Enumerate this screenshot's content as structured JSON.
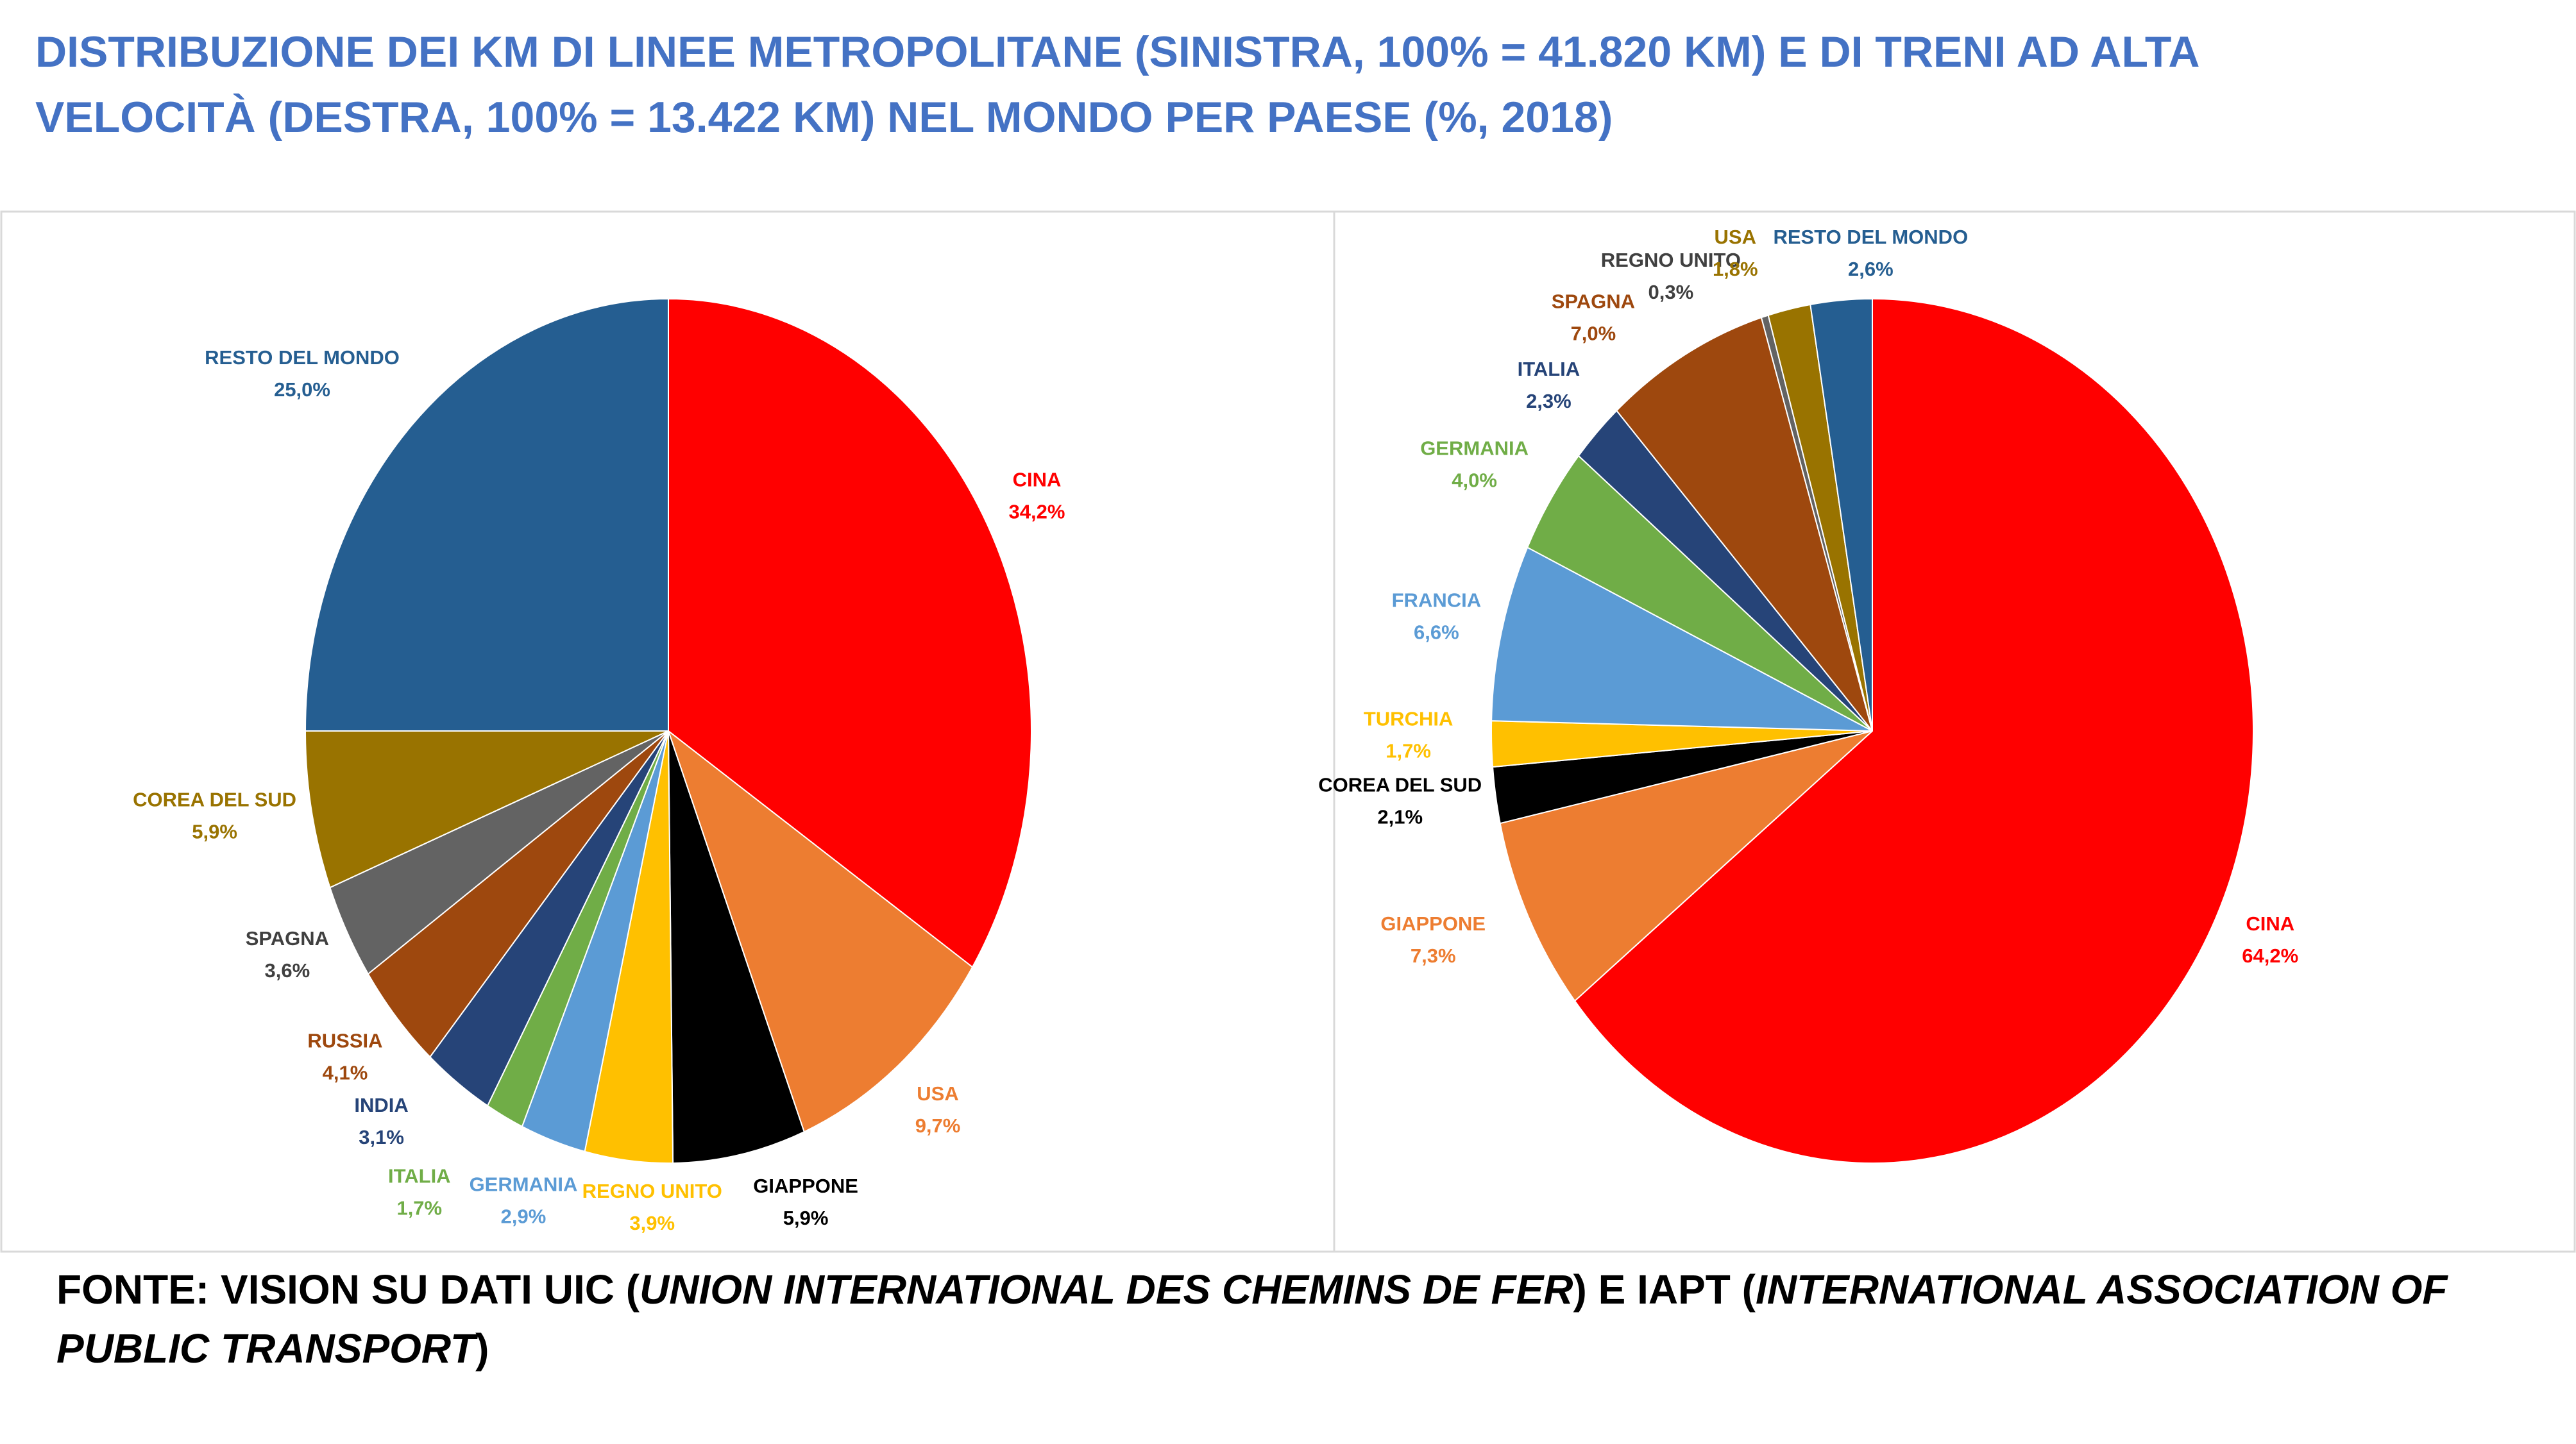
{
  "title": "DISTRIBUZIONE DEI KM DI LINEE METROPOLITANE (SINISTRA, 100% = 41.820 KM) E DI TRENI AD ALTA VELOCITÀ (DESTRA, 100% = 13.422 KM) NEL MONDO PER PAESE (%, 2018)",
  "chart_data": [
    {
      "type": "pie",
      "categories": [
        "CINA",
        "USA",
        "GIAPPONE",
        "REGNO UNITO",
        "GERMANIA",
        "ITALIA",
        "INDIA",
        "RUSSIA",
        "SPAGNA",
        "COREA DEL SUD",
        "RESTO DEL MONDO"
      ],
      "values": [
        34.2,
        9.7,
        5.9,
        3.9,
        2.9,
        1.7,
        3.1,
        4.1,
        3.6,
        5.9,
        25.0
      ],
      "value_labels": [
        "34,2%",
        "9,7%",
        "5,9%",
        "3,9%",
        "2,9%",
        "1,7%",
        "3,1%",
        "4,1%",
        "3,6%",
        "5,9%",
        "25,0%"
      ],
      "colors": [
        "#ff0000",
        "#ed7d31",
        "#000000",
        "#ffc000",
        "#5b9bd5",
        "#70ad47",
        "#264478",
        "#9e480e",
        "#636363",
        "#997300",
        "#255e91"
      ]
    },
    {
      "type": "pie",
      "categories": [
        "CINA",
        "GIAPPONE",
        "COREA DEL SUD",
        "TURCHIA",
        "FRANCIA",
        "GERMANIA",
        "ITALIA",
        "SPAGNA",
        "REGNO UNITO",
        "USA",
        "RESTO DEL MONDO"
      ],
      "values": [
        64.2,
        7.3,
        2.1,
        1.7,
        6.6,
        4.0,
        2.3,
        7.0,
        0.3,
        1.8,
        2.6
      ],
      "value_labels": [
        "64,2%",
        "7,3%",
        "2,1%",
        "1,7%",
        "6,6%",
        "4,0%",
        "2,3%",
        "7,0%",
        "0,3%",
        "1,8%",
        "2,6%"
      ],
      "colors": [
        "#ff0000",
        "#ed7d31",
        "#000000",
        "#ffc000",
        "#5b9bd5",
        "#70ad47",
        "#264478",
        "#9e480e",
        "#636363",
        "#997300",
        "#255e91"
      ]
    }
  ],
  "source": [
    "FONTE: VISION SU DATI UIC (",
    "UNION INTERNATIONAL DES CHEMINS DE FER",
    ") E IAPT (",
    "INTERNATIONAL ASSOCIATION OF PUBLIC TRANSPORT",
    ")"
  ]
}
